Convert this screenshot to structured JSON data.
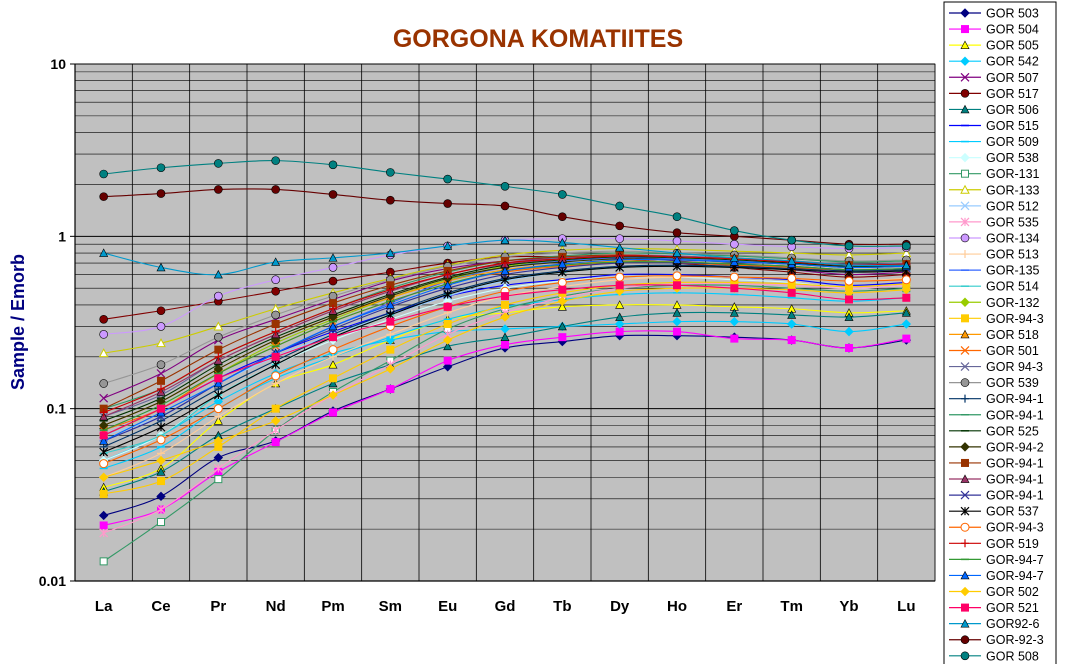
{
  "chart_data": {
    "type": "line",
    "title": "GORGONA KOMATIITES",
    "ylabel": "Sample / Emorb",
    "xlabel": "",
    "yscale": "log",
    "ylim": [
      0.01,
      10
    ],
    "yticks": [
      "10",
      "1",
      "0.1",
      "0.01"
    ],
    "categories": [
      "La",
      "Ce",
      "Pr",
      "Nd",
      "Pm",
      "Sm",
      "Eu",
      "Gd",
      "Tb",
      "Dy",
      "Ho",
      "Er",
      "Tm",
      "Yb",
      "Lu"
    ],
    "grid": true,
    "plot_background": "#c0c0c0",
    "legend_position": "right",
    "series": [
      {
        "name": "GOR 503",
        "color": "#000080",
        "marker": "diamond",
        "values": [
          0.024,
          0.031,
          0.052,
          0.065,
          0.097,
          0.13,
          0.175,
          0.225,
          0.245,
          0.265,
          0.265,
          0.26,
          0.25,
          0.225,
          0.25
        ]
      },
      {
        "name": "GOR 504",
        "color": "#ff00ff",
        "marker": "square",
        "values": [
          0.021,
          0.026,
          0.043,
          0.064,
          0.095,
          0.13,
          0.19,
          0.235,
          0.26,
          0.28,
          0.28,
          0.255,
          0.25,
          0.225,
          0.255
        ]
      },
      {
        "name": "GOR 505",
        "color": "#ffff00",
        "marker": "triangle",
        "values": [
          0.035,
          0.045,
          0.085,
          0.14,
          0.18,
          0.25,
          0.33,
          0.36,
          0.39,
          0.4,
          0.4,
          0.39,
          0.38,
          0.36,
          0.37
        ]
      },
      {
        "name": "GOR 542",
        "color": "#00ccff",
        "marker": "diamond",
        "values": [
          0.05,
          0.07,
          0.11,
          0.16,
          0.21,
          0.25,
          0.28,
          0.29,
          0.3,
          0.31,
          0.32,
          0.32,
          0.31,
          0.28,
          0.31
        ]
      },
      {
        "name": "GOR 507",
        "color": "#800080",
        "marker": "x",
        "values": [
          0.115,
          0.16,
          0.25,
          0.33,
          0.43,
          0.55,
          0.65,
          0.72,
          0.75,
          0.76,
          0.72,
          0.68,
          0.64,
          0.6,
          0.62
        ]
      },
      {
        "name": "GOR 517",
        "color": "#800000",
        "marker": "circle",
        "values": [
          0.33,
          0.37,
          0.42,
          0.48,
          0.55,
          0.62,
          0.7,
          0.76,
          0.76,
          0.74,
          0.7,
          0.66,
          0.62,
          0.58,
          0.6
        ]
      },
      {
        "name": "GOR 506",
        "color": "#008080",
        "marker": "triangle",
        "values": [
          0.033,
          0.043,
          0.07,
          0.1,
          0.14,
          0.18,
          0.23,
          0.26,
          0.3,
          0.34,
          0.36,
          0.36,
          0.35,
          0.34,
          0.36
        ]
      },
      {
        "name": "GOR 515",
        "color": "#0000ff",
        "marker": "dash",
        "values": [
          0.07,
          0.1,
          0.15,
          0.21,
          0.28,
          0.36,
          0.45,
          0.52,
          0.56,
          0.6,
          0.6,
          0.58,
          0.56,
          0.52,
          0.54
        ]
      },
      {
        "name": "GOR 509",
        "color": "#00ccff",
        "marker": "dash",
        "values": [
          0.045,
          0.06,
          0.1,
          0.15,
          0.2,
          0.26,
          0.33,
          0.39,
          0.43,
          0.46,
          0.47,
          0.46,
          0.44,
          0.42,
          0.44
        ]
      },
      {
        "name": "GOR 538",
        "color": "#ccffff",
        "marker": "diamond",
        "values": [
          0.05,
          0.07,
          0.12,
          0.18,
          0.25,
          0.33,
          0.42,
          0.5,
          0.55,
          0.58,
          0.58,
          0.56,
          0.54,
          0.5,
          0.52
        ]
      },
      {
        "name": "GOR-131",
        "color": "#339966",
        "marker": "opensquare",
        "values": [
          0.013,
          0.022,
          0.039,
          0.075,
          0.125,
          0.19,
          0.29,
          0.38,
          0.45,
          0.5,
          0.52,
          0.52,
          0.5,
          0.48,
          0.5
        ]
      },
      {
        "name": "GOR-133",
        "color": "#cccc00",
        "marker": "opentriangle",
        "values": [
          0.21,
          0.24,
          0.3,
          0.38,
          0.47,
          0.57,
          0.68,
          0.78,
          0.83,
          0.85,
          0.84,
          0.82,
          0.8,
          0.78,
          0.8
        ]
      },
      {
        "name": "GOR 512",
        "color": "#99ccff",
        "marker": "x",
        "values": [
          0.07,
          0.09,
          0.14,
          0.2,
          0.27,
          0.35,
          0.45,
          0.55,
          0.62,
          0.66,
          0.67,
          0.66,
          0.64,
          0.62,
          0.64
        ]
      },
      {
        "name": "GOR 535",
        "color": "#ff99cc",
        "marker": "star",
        "values": [
          0.019,
          0.026,
          0.045,
          0.075,
          0.12,
          0.18,
          0.27,
          0.36,
          0.44,
          0.5,
          0.53,
          0.53,
          0.52,
          0.5,
          0.52
        ]
      },
      {
        "name": "GOR-134",
        "color": "#cc99ff",
        "marker": "circle",
        "values": [
          0.27,
          0.3,
          0.45,
          0.56,
          0.66,
          0.78,
          0.88,
          0.95,
          0.97,
          0.97,
          0.94,
          0.9,
          0.87,
          0.85,
          0.86
        ]
      },
      {
        "name": "GOR 513",
        "color": "#ffcc99",
        "marker": "plus",
        "values": [
          0.04,
          0.055,
          0.09,
          0.14,
          0.2,
          0.27,
          0.36,
          0.45,
          0.51,
          0.56,
          0.58,
          0.58,
          0.57,
          0.55,
          0.57
        ]
      },
      {
        "name": "GOR-135",
        "color": "#3366ff",
        "marker": "dash",
        "values": [
          0.065,
          0.09,
          0.14,
          0.21,
          0.3,
          0.41,
          0.55,
          0.66,
          0.72,
          0.75,
          0.74,
          0.72,
          0.7,
          0.67,
          0.68
        ]
      },
      {
        "name": "GOR 514",
        "color": "#33cccc",
        "marker": "dash",
        "values": [
          0.055,
          0.07,
          0.12,
          0.18,
          0.26,
          0.35,
          0.46,
          0.56,
          0.62,
          0.66,
          0.67,
          0.66,
          0.64,
          0.62,
          0.63
        ]
      },
      {
        "name": "GOR-132",
        "color": "#99cc00",
        "marker": "diamond",
        "values": [
          0.07,
          0.1,
          0.16,
          0.24,
          0.33,
          0.44,
          0.56,
          0.67,
          0.73,
          0.76,
          0.75,
          0.73,
          0.7,
          0.67,
          0.68
        ]
      },
      {
        "name": "GOR-94-3",
        "color": "#ffcc00",
        "marker": "square",
        "values": [
          0.032,
          0.038,
          0.06,
          0.1,
          0.15,
          0.22,
          0.31,
          0.4,
          0.47,
          0.52,
          0.54,
          0.54,
          0.53,
          0.51,
          0.53
        ]
      },
      {
        "name": "GOR 518",
        "color": "#ff9900",
        "marker": "triangle",
        "values": [
          0.08,
          0.11,
          0.17,
          0.25,
          0.34,
          0.44,
          0.55,
          0.64,
          0.69,
          0.72,
          0.71,
          0.69,
          0.66,
          0.63,
          0.64
        ]
      },
      {
        "name": "GOR 501",
        "color": "#ff6600",
        "marker": "x",
        "values": [
          0.075,
          0.1,
          0.16,
          0.23,
          0.32,
          0.42,
          0.53,
          0.62,
          0.67,
          0.7,
          0.7,
          0.68,
          0.66,
          0.63,
          0.64
        ]
      },
      {
        "name": "GOR 94-3",
        "color": "#666699",
        "marker": "x",
        "values": [
          0.09,
          0.12,
          0.19,
          0.27,
          0.37,
          0.48,
          0.6,
          0.7,
          0.75,
          0.78,
          0.77,
          0.75,
          0.72,
          0.69,
          0.7
        ]
      },
      {
        "name": "GOR 539",
        "color": "#969696",
        "marker": "circle",
        "values": [
          0.14,
          0.18,
          0.26,
          0.35,
          0.45,
          0.56,
          0.67,
          0.76,
          0.8,
          0.82,
          0.8,
          0.78,
          0.75,
          0.72,
          0.73
        ]
      },
      {
        "name": "GOR-94-1",
        "color": "#003366",
        "marker": "plus",
        "values": [
          0.06,
          0.085,
          0.13,
          0.19,
          0.27,
          0.36,
          0.47,
          0.57,
          0.63,
          0.67,
          0.68,
          0.67,
          0.65,
          0.63,
          0.64
        ]
      },
      {
        "name": "GOR-94-1",
        "color": "#339966",
        "marker": "dash",
        "values": [
          0.1,
          0.13,
          0.2,
          0.28,
          0.38,
          0.5,
          0.62,
          0.72,
          0.77,
          0.8,
          0.79,
          0.77,
          0.74,
          0.71,
          0.72
        ]
      },
      {
        "name": "GOR 525",
        "color": "#003300",
        "marker": "dash",
        "values": [
          0.085,
          0.115,
          0.18,
          0.26,
          0.35,
          0.46,
          0.58,
          0.68,
          0.73,
          0.76,
          0.75,
          0.73,
          0.7,
          0.67,
          0.68
        ]
      },
      {
        "name": "GOR-94-2",
        "color": "#333300",
        "marker": "diamond",
        "values": [
          0.08,
          0.11,
          0.17,
          0.25,
          0.34,
          0.45,
          0.57,
          0.66,
          0.71,
          0.74,
          0.73,
          0.71,
          0.69,
          0.66,
          0.67
        ]
      },
      {
        "name": "GOR-94-1",
        "color": "#993300",
        "marker": "square",
        "values": [
          0.1,
          0.145,
          0.22,
          0.31,
          0.41,
          0.52,
          0.63,
          0.72,
          0.76,
          0.78,
          0.76,
          0.74,
          0.71,
          0.68,
          0.69
        ]
      },
      {
        "name": "GOR-94-1",
        "color": "#993366",
        "marker": "triangle",
        "values": [
          0.09,
          0.125,
          0.19,
          0.27,
          0.37,
          0.48,
          0.6,
          0.69,
          0.74,
          0.77,
          0.76,
          0.74,
          0.71,
          0.68,
          0.69
        ]
      },
      {
        "name": "GOR-94-1",
        "color": "#333399",
        "marker": "x",
        "values": [
          0.065,
          0.09,
          0.14,
          0.21,
          0.29,
          0.39,
          0.5,
          0.6,
          0.66,
          0.7,
          0.7,
          0.69,
          0.67,
          0.64,
          0.65
        ]
      },
      {
        "name": "GOR 537",
        "color": "#000000",
        "marker": "star",
        "values": [
          0.056,
          0.078,
          0.12,
          0.18,
          0.26,
          0.35,
          0.46,
          0.56,
          0.62,
          0.66,
          0.67,
          0.66,
          0.64,
          0.62,
          0.63
        ]
      },
      {
        "name": "GOR-94-3",
        "color": "#ff6600",
        "marker": "opencircle",
        "values": [
          0.048,
          0.066,
          0.1,
          0.155,
          0.22,
          0.3,
          0.39,
          0.48,
          0.54,
          0.58,
          0.59,
          0.58,
          0.57,
          0.55,
          0.56
        ]
      },
      {
        "name": "GOR 519",
        "color": "#cc0000",
        "marker": "plus",
        "values": [
          0.095,
          0.13,
          0.2,
          0.28,
          0.38,
          0.49,
          0.6,
          0.7,
          0.74,
          0.77,
          0.76,
          0.74,
          0.71,
          0.68,
          0.69
        ]
      },
      {
        "name": "GOR-94-7",
        "color": "#339933",
        "marker": "dash",
        "values": [
          0.075,
          0.105,
          0.16,
          0.23,
          0.32,
          0.42,
          0.53,
          0.63,
          0.68,
          0.71,
          0.71,
          0.69,
          0.67,
          0.64,
          0.65
        ]
      },
      {
        "name": "GOR-94-7",
        "color": "#0066ff",
        "marker": "triangle",
        "values": [
          0.065,
          0.095,
          0.14,
          0.21,
          0.3,
          0.4,
          0.52,
          0.63,
          0.69,
          0.73,
          0.73,
          0.71,
          0.69,
          0.66,
          0.67
        ]
      },
      {
        "name": "GOR 502",
        "color": "#ffcc00",
        "marker": "diamond",
        "values": [
          0.04,
          0.05,
          0.065,
          0.085,
          0.12,
          0.17,
          0.25,
          0.34,
          0.42,
          0.48,
          0.5,
          0.5,
          0.49,
          0.47,
          0.49
        ]
      },
      {
        "name": "GOR 521",
        "color": "#ff0066",
        "marker": "square",
        "values": [
          0.07,
          0.1,
          0.15,
          0.2,
          0.26,
          0.32,
          0.39,
          0.45,
          0.49,
          0.52,
          0.52,
          0.5,
          0.47,
          0.43,
          0.44
        ]
      },
      {
        "name": "GOR92-6",
        "color": "#0099cc",
        "marker": "triangle",
        "values": [
          0.8,
          0.66,
          0.6,
          0.71,
          0.75,
          0.8,
          0.88,
          0.95,
          0.92,
          0.86,
          0.8,
          0.75,
          0.72,
          0.68,
          0.68
        ]
      },
      {
        "name": "GOR-92-3",
        "color": "#660000",
        "marker": "circle",
        "values": [
          1.7,
          1.77,
          1.87,
          1.87,
          1.75,
          1.62,
          1.55,
          1.5,
          1.3,
          1.15,
          1.05,
          1.0,
          0.95,
          0.9,
          0.9
        ]
      },
      {
        "name": "GOR 508",
        "color": "#008080",
        "marker": "circle",
        "values": [
          2.3,
          2.5,
          2.65,
          2.75,
          2.6,
          2.35,
          2.15,
          1.95,
          1.75,
          1.5,
          1.3,
          1.08,
          0.95,
          0.88,
          0.88
        ]
      }
    ]
  }
}
